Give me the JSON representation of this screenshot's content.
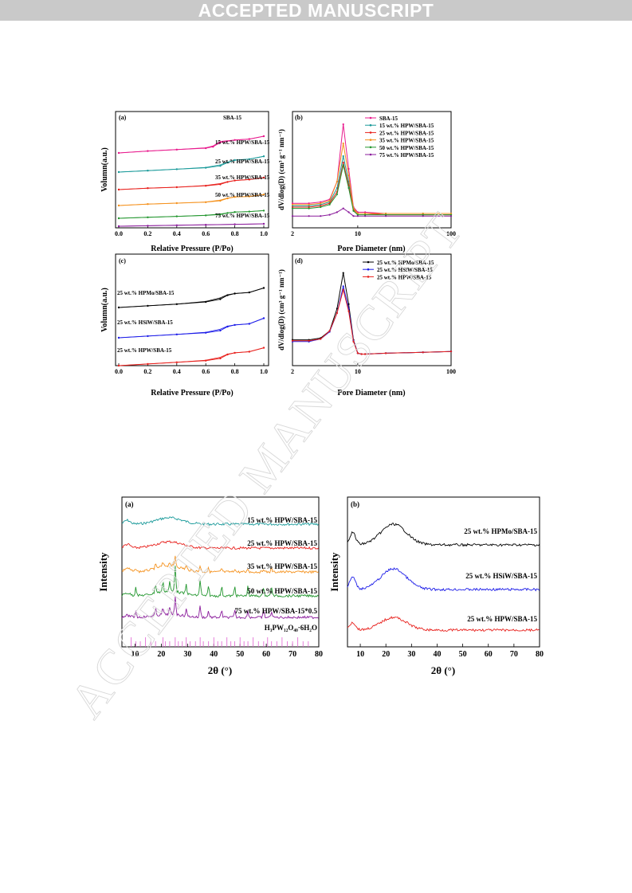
{
  "banner": "ACCEPTED MANUSCRIPT",
  "watermark": "ACCEPTED MANUSCRIPT",
  "figure1": {
    "panel_a": {
      "tag": "(a)",
      "xlabel": "Relative Pressure (P/Po)",
      "ylabel": "Volumn(a.u.)",
      "xticks": [
        "0.0",
        "0.2",
        "0.4",
        "0.6",
        "0.8",
        "1.0"
      ],
      "labels": [
        "SBA-15",
        "15 wt.% HPW/SBA-15",
        "25 wt.% HPW/SBA-15",
        "35 wt.% HPW/SBA-15",
        "50 wt.% HPW/SBA-15",
        "75 wt.% HPW/SBA-15"
      ]
    },
    "panel_b": {
      "tag": "(b)",
      "xlabel": "Pore Diameter (nm)",
      "ylabel": "dV/dlog(D) (cm³ g⁻¹ nm⁻¹)",
      "xticks": [
        "2",
        "10",
        "100"
      ],
      "legend": [
        "SBA-15",
        "15 wt.% HPW/SBA-15",
        "25 wt.% HPW/SBA-15",
        "35 wt.% HPW/SBA-15",
        "50 wt.% HPW/SBA-15",
        "75 wt.% HPW/SBA-15"
      ]
    },
    "panel_c": {
      "tag": "(c)",
      "xlabel": "Relative Pressure (P/Po)",
      "ylabel": "Volumn(a.u.)",
      "xticks": [
        "0.0",
        "0.2",
        "0.4",
        "0.6",
        "0.8",
        "1.0"
      ],
      "labels": [
        "25 wt.% HPMo/SBA-15",
        "25 wt.% HSiW/SBA-15",
        "25 wt.% HPW/SBA-15"
      ]
    },
    "panel_d": {
      "tag": "(d)",
      "xlabel": "Pore Diameter (nm)",
      "ylabel": "dV/dlog(D) (cm³ g⁻¹ nm⁻¹)",
      "xticks": [
        "2",
        "10",
        "100"
      ],
      "legend": [
        "25 wt.% HPMo/SBA-15",
        "25 wt.% HSiW/SBA-15",
        "25 wt.% HPW/SBA-15"
      ]
    }
  },
  "figure2": {
    "panel_a": {
      "tag": "(a)",
      "xlabel": "2θ (°)",
      "ylabel": "Intensity",
      "xticks": [
        "10",
        "20",
        "30",
        "40",
        "50",
        "60",
        "70",
        "80"
      ],
      "labels": [
        "15 wt.% HPW/SBA-15",
        "25 wt.% HPW/SBA-15",
        "35 wt.% HPW/SBA-15",
        "50 wt.% HPW/SBA-15",
        "75 wt.% HPW/SBA-15*0.5",
        "H₃PW₁₂O₄₀·6H₂O"
      ]
    },
    "panel_b": {
      "tag": "(b)",
      "xlabel": "2θ (°)",
      "ylabel": "Intensity",
      "xticks": [
        "10",
        "20",
        "30",
        "40",
        "50",
        "60",
        "70",
        "80"
      ],
      "labels": [
        "25 wt.% HPMo/SBA-15",
        "25 wt.% HSiW/SBA-15",
        "25 wt.% HPW/SBA-15"
      ]
    }
  },
  "colors": {
    "magenta": "#e8188c",
    "teal": "#1a9a9a",
    "red": "#e8201c",
    "orange": "#f5921e",
    "green": "#22962e",
    "purple": "#8b1c9c",
    "black": "#000000",
    "blue": "#1c1ce8",
    "pink_ref": "#e060d0"
  },
  "chart_data": [
    {
      "type": "line",
      "title": "",
      "panel": "(a)",
      "xlabel": "Relative Pressure (P/Po)",
      "ylabel": "Volumn(a.u.)",
      "xlim": [
        0,
        1.0
      ],
      "series": [
        {
          "name": "SBA-15",
          "x": [
            0.0,
            0.2,
            0.4,
            0.6,
            0.65,
            0.7,
            0.8,
            0.9,
            1.0
          ],
          "y": [
            0.9,
            0.94,
            0.97,
            1.0,
            1.03,
            1.12,
            1.17,
            1.19,
            1.25
          ]
        },
        {
          "name": "15 wt.% HPW/SBA-15",
          "x": [
            0.0,
            0.2,
            0.4,
            0.6,
            0.7,
            0.75,
            0.8,
            0.9,
            1.0
          ],
          "y": [
            0.7,
            0.73,
            0.76,
            0.79,
            0.83,
            0.9,
            0.95,
            0.97,
            1.03
          ]
        },
        {
          "name": "25 wt.% HPW/SBA-15",
          "x": [
            0.0,
            0.2,
            0.4,
            0.6,
            0.7,
            0.75,
            0.8,
            0.9,
            1.0
          ],
          "y": [
            0.53,
            0.56,
            0.58,
            0.61,
            0.64,
            0.69,
            0.72,
            0.74,
            0.78
          ]
        },
        {
          "name": "35 wt.% HPW/SBA-15",
          "x": [
            0.0,
            0.2,
            0.4,
            0.6,
            0.7,
            0.75,
            0.8,
            0.9,
            1.0
          ],
          "y": [
            0.35,
            0.38,
            0.4,
            0.42,
            0.45,
            0.5,
            0.53,
            0.54,
            0.58
          ]
        },
        {
          "name": "50 wt.% HPW/SBA-15",
          "x": [
            0.0,
            0.2,
            0.4,
            0.6,
            0.7,
            0.75,
            0.8,
            0.9,
            1.0
          ],
          "y": [
            0.2,
            0.22,
            0.24,
            0.26,
            0.28,
            0.31,
            0.33,
            0.34,
            0.36
          ]
        },
        {
          "name": "75 wt.% HPW/SBA-15",
          "x": [
            0.0,
            0.2,
            0.4,
            0.6,
            0.8,
            1.0
          ],
          "y": [
            0.05,
            0.06,
            0.07,
            0.08,
            0.09,
            0.1
          ]
        }
      ]
    },
    {
      "type": "line",
      "title": "",
      "panel": "(b)",
      "xlabel": "Pore Diameter (nm)",
      "ylabel": "dV/dlog(D) (cm3 g-1 nm-1)",
      "xscale": "log",
      "xlim": [
        2,
        100
      ],
      "series": [
        {
          "name": "SBA-15",
          "x": [
            2,
            3,
            4,
            5,
            6,
            7,
            8,
            9,
            10,
            12,
            20,
            50,
            100
          ],
          "y": [
            0.13,
            0.13,
            0.14,
            0.16,
            0.3,
            0.75,
            0.4,
            0.1,
            0.06,
            0.06,
            0.05,
            0.05,
            0.05
          ]
        },
        {
          "name": "15 wt.% HPW/SBA-15",
          "x": [
            2,
            3,
            4,
            5,
            6,
            7,
            8,
            9,
            10,
            12,
            20,
            50,
            100
          ],
          "y": [
            0.11,
            0.11,
            0.12,
            0.14,
            0.25,
            0.5,
            0.3,
            0.09,
            0.05,
            0.05,
            0.05,
            0.05,
            0.05
          ]
        },
        {
          "name": "25 wt.% HPW/SBA-15",
          "x": [
            2,
            3,
            4,
            5,
            6,
            7,
            8,
            9,
            10,
            12,
            20,
            50,
            100
          ],
          "y": [
            0.1,
            0.1,
            0.11,
            0.13,
            0.22,
            0.45,
            0.27,
            0.08,
            0.05,
            0.05,
            0.04,
            0.04,
            0.04
          ]
        },
        {
          "name": "35 wt.% HPW/SBA-15",
          "x": [
            2,
            3,
            4,
            5,
            6,
            7,
            8,
            9,
            10,
            12,
            20,
            50,
            100
          ],
          "y": [
            0.12,
            0.12,
            0.13,
            0.15,
            0.3,
            0.6,
            0.35,
            0.09,
            0.05,
            0.05,
            0.05,
            0.05,
            0.05
          ]
        },
        {
          "name": "50 wt.% HPW/SBA-15",
          "x": [
            2,
            3,
            4,
            5,
            6,
            7,
            8,
            9,
            10,
            12,
            20,
            50,
            100
          ],
          "y": [
            0.09,
            0.09,
            0.1,
            0.12,
            0.2,
            0.43,
            0.25,
            0.07,
            0.04,
            0.04,
            0.04,
            0.04,
            0.04
          ]
        },
        {
          "name": "75 wt.% HPW/SBA-15",
          "x": [
            2,
            3,
            4,
            5,
            6,
            7,
            8,
            9,
            10,
            12,
            20,
            50,
            100
          ],
          "y": [
            0.03,
            0.03,
            0.03,
            0.04,
            0.06,
            0.09,
            0.06,
            0.03,
            0.03,
            0.03,
            0.03,
            0.03,
            0.03
          ]
        }
      ]
    },
    {
      "type": "line",
      "title": "",
      "panel": "(c)",
      "xlabel": "Relative Pressure (P/Po)",
      "ylabel": "Volumn(a.u.)",
      "xlim": [
        0,
        1.0
      ],
      "series": [
        {
          "name": "25 wt.% HPMo/SBA-15",
          "x": [
            0.0,
            0.2,
            0.4,
            0.6,
            0.7,
            0.75,
            0.8,
            0.9,
            1.0
          ],
          "y": [
            0.7,
            0.73,
            0.76,
            0.8,
            0.85,
            0.92,
            0.95,
            0.97,
            1.05
          ]
        },
        {
          "name": "25 wt.% HSiW/SBA-15",
          "x": [
            0.0,
            0.2,
            0.4,
            0.6,
            0.7,
            0.75,
            0.8,
            0.9,
            1.0
          ],
          "y": [
            0.4,
            0.43,
            0.46,
            0.49,
            0.53,
            0.6,
            0.63,
            0.65,
            0.75
          ]
        },
        {
          "name": "25 wt.% HPW/SBA-15",
          "x": [
            0.0,
            0.2,
            0.4,
            0.6,
            0.7,
            0.75,
            0.8,
            0.9,
            1.0
          ],
          "y": [
            0.05,
            0.08,
            0.11,
            0.14,
            0.18,
            0.25,
            0.28,
            0.3,
            0.37
          ]
        }
      ]
    },
    {
      "type": "line",
      "title": "",
      "panel": "(d)",
      "xlabel": "Pore Diameter (nm)",
      "ylabel": "dV/dlog(D) (cm3 g-1 nm-1)",
      "xscale": "log",
      "xlim": [
        2,
        100
      ],
      "series": [
        {
          "name": "25 wt.% HPMo/SBA-15",
          "x": [
            2,
            3,
            4,
            5,
            6,
            7,
            8,
            9,
            10,
            11,
            12,
            20,
            50,
            100
          ],
          "y": [
            0.2,
            0.2,
            0.22,
            0.3,
            0.55,
            0.95,
            0.6,
            0.2,
            0.05,
            0.04,
            0.04,
            0.05,
            0.06,
            0.07
          ]
        },
        {
          "name": "25 wt.% HSiW/SBA-15",
          "x": [
            2,
            3,
            4,
            5,
            6,
            7,
            8,
            9,
            10,
            11,
            12,
            20,
            50,
            100
          ],
          "y": [
            0.18,
            0.18,
            0.21,
            0.29,
            0.5,
            0.8,
            0.55,
            0.19,
            0.05,
            0.04,
            0.04,
            0.05,
            0.06,
            0.07
          ]
        },
        {
          "name": "25 wt.% HPW/SBA-15",
          "x": [
            2,
            3,
            4,
            5,
            6,
            7,
            8,
            9,
            10,
            11,
            12,
            20,
            50,
            100
          ],
          "y": [
            0.19,
            0.19,
            0.21,
            0.3,
            0.5,
            0.76,
            0.52,
            0.18,
            0.05,
            0.04,
            0.04,
            0.05,
            0.06,
            0.07
          ]
        }
      ]
    },
    {
      "type": "line",
      "title": "",
      "panel": "(a)",
      "xlabel": "2θ (°)",
      "ylabel": "Intensity",
      "xlim": [
        5,
        80
      ],
      "series": [
        {
          "name": "15 wt.% HPW/SBA-15"
        },
        {
          "name": "25 wt.% HPW/SBA-15"
        },
        {
          "name": "35 wt.% HPW/SBA-15"
        },
        {
          "name": "50 wt.% HPW/SBA-15"
        },
        {
          "name": "75 wt.% HPW/SBA-15*0.5"
        },
        {
          "name": "H3PW12O40·6H2O"
        }
      ]
    },
    {
      "type": "line",
      "title": "",
      "panel": "(b)",
      "xlabel": "2θ (°)",
      "ylabel": "Intensity",
      "xlim": [
        5,
        80
      ],
      "series": [
        {
          "name": "25 wt.% HPMo/SBA-15"
        },
        {
          "name": "25 wt.% HSiW/SBA-15"
        },
        {
          "name": "25 wt.% HPW/SBA-15"
        }
      ]
    }
  ]
}
